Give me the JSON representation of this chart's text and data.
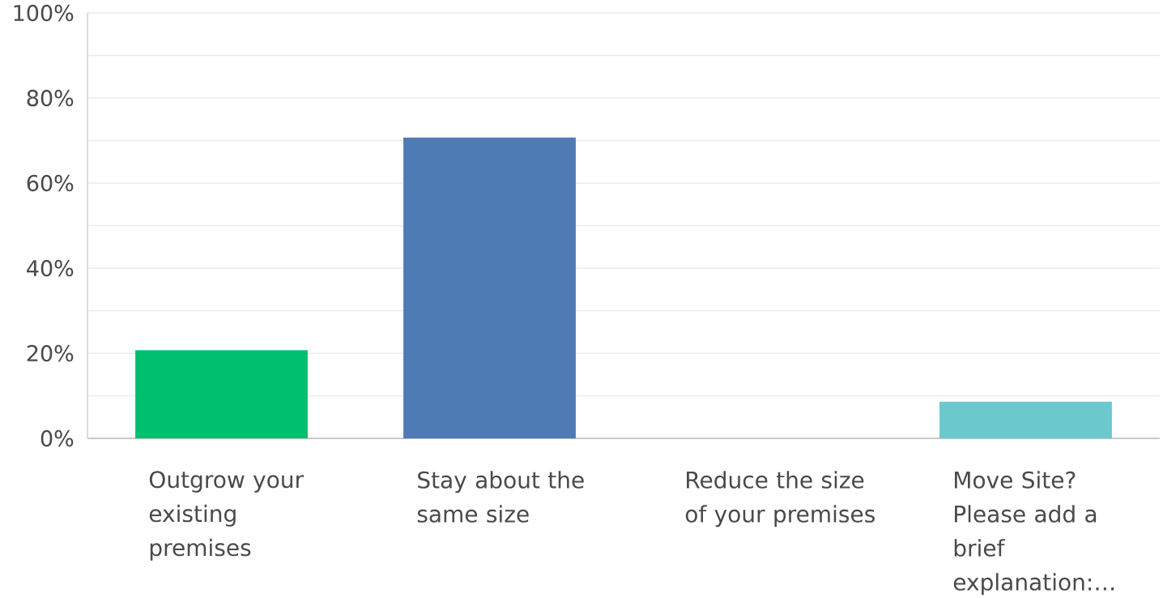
{
  "chart_data": {
    "type": "bar",
    "categories": [
      "Outgrow your existing premises",
      "Stay about the same size",
      "Reduce the size of your premises",
      "Move Site? Please add a brief explanation:…"
    ],
    "values": [
      20.7,
      70.7,
      0,
      8.6
    ],
    "colors": [
      "#00bf6f",
      "#4f7bb5",
      "#f9be00",
      "#6bc8cd"
    ],
    "ylim": [
      0,
      100
    ],
    "yticks": [
      {
        "value": 0,
        "label": "0%"
      },
      {
        "value": 10,
        "label": null
      },
      {
        "value": 20,
        "label": "20%"
      },
      {
        "value": 30,
        "label": null
      },
      {
        "value": 40,
        "label": "40%"
      },
      {
        "value": 50,
        "label": null
      },
      {
        "value": 60,
        "label": "60%"
      },
      {
        "value": 70,
        "label": null
      },
      {
        "value": 80,
        "label": "80%"
      },
      {
        "value": 90,
        "label": null
      },
      {
        "value": 100,
        "label": "100%"
      }
    ],
    "grid": "y"
  }
}
